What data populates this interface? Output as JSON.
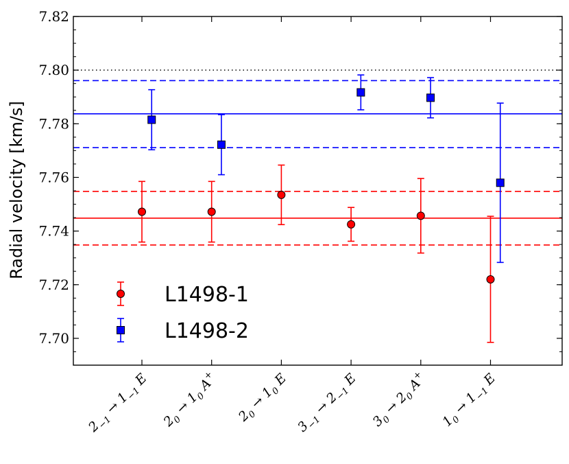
{
  "chart_data": {
    "type": "scatter",
    "title": "",
    "xlabel": "",
    "ylabel": "Radial velocity [km/s]",
    "ylim": [
      7.69,
      7.82
    ],
    "y_ticks": [
      "7.70",
      "7.72",
      "7.74",
      "7.76",
      "7.78",
      "7.80",
      "7.82"
    ],
    "grid": false,
    "legend_position": "lower-left",
    "categories": [
      {
        "base": "2",
        "base_sub": "−1",
        "arrow": "→",
        "target": "1",
        "target_sub": "−1",
        "sym": "E",
        "sym_sup": ""
      },
      {
        "base": "2",
        "base_sub": "0",
        "arrow": "→",
        "target": "1",
        "target_sub": "0",
        "sym": "A",
        "sym_sup": "+"
      },
      {
        "base": "2",
        "base_sub": "0",
        "arrow": "→",
        "target": "1",
        "target_sub": "0",
        "sym": "E",
        "sym_sup": ""
      },
      {
        "base": "3",
        "base_sub": "−1",
        "arrow": "→",
        "target": "2",
        "target_sub": "−1",
        "sym": "E",
        "sym_sup": ""
      },
      {
        "base": "3",
        "base_sub": "0",
        "arrow": "→",
        "target": "2",
        "target_sub": "0",
        "sym": "A",
        "sym_sup": "+"
      },
      {
        "base": "1",
        "base_sub": "0",
        "arrow": "→",
        "target": "1",
        "target_sub": "−1",
        "sym": "E",
        "sym_sup": ""
      }
    ],
    "series": [
      {
        "name": "L1498-1",
        "color": "#ff0000",
        "marker": "circle",
        "x_offset": 0,
        "values": [
          7.7472,
          7.7472,
          7.7535,
          7.7425,
          7.7457,
          7.722
        ],
        "errors": [
          0.0113,
          0.0113,
          0.0111,
          0.0063,
          0.0139,
          0.0235
        ],
        "mean": 7.7448,
        "band": [
          7.7348,
          7.7548
        ]
      },
      {
        "name": "L1498-2",
        "color": "#0000ff",
        "marker": "square",
        "x_offset": 0.14,
        "values": [
          7.7815,
          7.7722,
          7.7917,
          7.7897,
          7.758
        ],
        "errors": [
          0.0112,
          0.0112,
          0.0065,
          0.0075,
          0.0297
        ],
        "x_indices": [
          0,
          1,
          3,
          4,
          5
        ],
        "mean": 7.7837,
        "band": [
          7.7711,
          7.7961
        ]
      }
    ],
    "reference_line": {
      "value": 7.8,
      "color": "#000000",
      "style": "dotted"
    }
  }
}
